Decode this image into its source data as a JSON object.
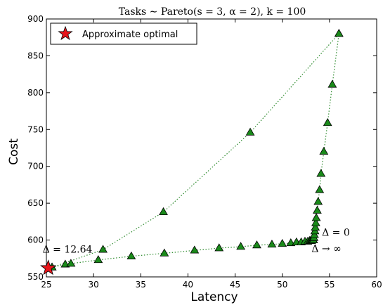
{
  "chart_data": {
    "type": "scatter",
    "title": "Tasks ∼ Pareto(s = 3, α = 2), k = 100",
    "xlabel": "Latency",
    "ylabel": "Cost",
    "xlim": [
      25,
      60
    ],
    "ylim": [
      550,
      900
    ],
    "x_ticks": [
      25,
      30,
      35,
      40,
      45,
      50,
      55,
      60
    ],
    "y_ticks": [
      550,
      600,
      650,
      700,
      750,
      800,
      850,
      900
    ],
    "grid": false,
    "legend_position": "top-left",
    "colors": {
      "marker_fill": "#1a8a1a",
      "marker_edge": "#000000",
      "line": "#2e8b2e",
      "star_fill": "#e8141a"
    },
    "series": [
      {
        "style": "dotted-line-triangles",
        "x": [
          25.6,
          27.0,
          27.6,
          30.5,
          34.0,
          37.5,
          40.7,
          43.3,
          45.6,
          47.3,
          48.9,
          50.0,
          50.9,
          51.5,
          52.0,
          52.4,
          52.7,
          52.9,
          53.0,
          53.1,
          53.2,
          53.3
        ],
        "y": [
          563,
          567,
          568,
          573,
          578,
          582,
          586,
          589,
          591,
          593,
          594,
          595,
          596,
          597,
          597,
          598,
          598,
          599,
          599,
          599,
          600,
          600
        ]
      },
      {
        "style": "dotted-line-triangles",
        "x": [
          53.3,
          53.35,
          53.4,
          53.45,
          53.5,
          53.55,
          53.6,
          53.7,
          53.8,
          53.95,
          54.1,
          54.4,
          54.8,
          55.3,
          56.0
        ],
        "y": [
          600,
          603,
          607,
          612,
          617,
          623,
          630,
          640,
          652,
          668,
          690,
          720,
          759,
          811,
          880
        ]
      },
      {
        "style": "dotted-line-triangles",
        "x": [
          25.6,
          31.0,
          37.4,
          46.6,
          56.0
        ],
        "y": [
          563,
          587,
          638,
          746,
          880
        ]
      }
    ],
    "optimal_point": {
      "label": "Approximate optimal",
      "x": 25.2,
      "y": 562
    },
    "annotations": [
      {
        "text": "Δ = 12.64",
        "x": 24.6,
        "y": 583
      },
      {
        "text": "Δ = 0",
        "x": 54.2,
        "y": 606
      },
      {
        "text": "Δ → ∞",
        "x": 53.1,
        "y": 584
      }
    ]
  }
}
